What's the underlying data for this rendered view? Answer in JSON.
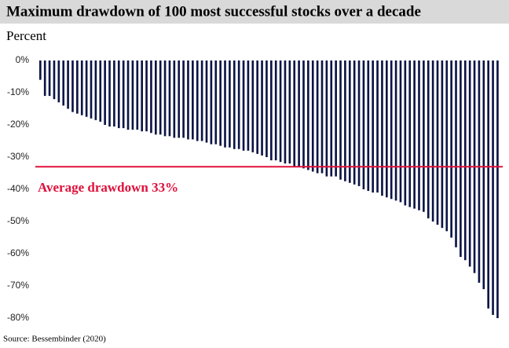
{
  "chart_data": {
    "type": "bar",
    "title": "Maximum drawdown of 100 most successful stocks over a decade",
    "subtitle": "Percent",
    "source": "Source: Bessembinder (2020)",
    "color": "#0c1445",
    "values": [
      -6,
      -11,
      -11,
      -12,
      -13,
      -14,
      -15,
      -16,
      -16.5,
      -17,
      -17.5,
      -18,
      -18.5,
      -19,
      -20,
      -20.5,
      -20.5,
      -21,
      -21,
      -21.5,
      -21.5,
      -21.5,
      -22,
      -22,
      -22.5,
      -23,
      -23,
      -23.5,
      -23.5,
      -24,
      -24,
      -24,
      -24.5,
      -24.5,
      -25,
      -25,
      -25.5,
      -26,
      -26,
      -26.5,
      -27,
      -27,
      -27.5,
      -27.5,
      -28,
      -28,
      -28.5,
      -29,
      -29.5,
      -30,
      -31,
      -31,
      -31.5,
      -32,
      -32,
      -33,
      -33,
      -33.5,
      -34,
      -34.5,
      -35,
      -35,
      -36,
      -36,
      -36,
      -37,
      -37.5,
      -38,
      -38.5,
      -39,
      -40,
      -40.5,
      -41,
      -41,
      -42,
      -42.5,
      -43,
      -43.5,
      -44,
      -45,
      -45.5,
      -46,
      -46.5,
      -47,
      -49,
      -50,
      -51,
      -52,
      -53,
      -55,
      -58,
      -61,
      -62,
      -64,
      -66,
      -69,
      -71,
      -77,
      -79,
      -80
    ],
    "ylim": [
      -80,
      0
    ],
    "yticks": [
      {
        "value": 0,
        "label": "0%"
      },
      {
        "value": -10,
        "label": "-10%"
      },
      {
        "value": -20,
        "label": "-20%"
      },
      {
        "value": -30,
        "label": "-30%"
      },
      {
        "value": -40,
        "label": "-40%"
      },
      {
        "value": -50,
        "label": "-50%"
      },
      {
        "value": -60,
        "label": "-60%"
      },
      {
        "value": -70,
        "label": "-70%"
      },
      {
        "value": -80,
        "label": "-80%"
      }
    ],
    "reference_line": {
      "value": -33,
      "label": "Average drawdown 33%",
      "color": "#e0103a"
    }
  }
}
